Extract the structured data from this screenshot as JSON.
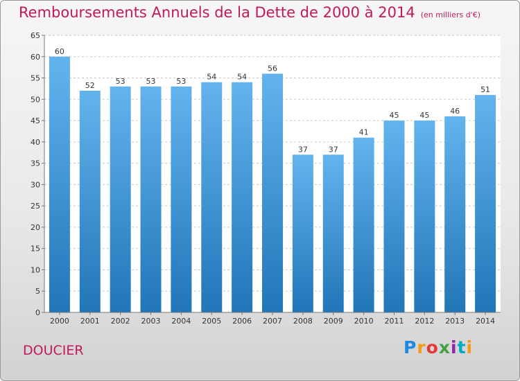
{
  "header": {
    "title": "Remboursements Annuels de la Dette de 2000 à 2014",
    "unit": "(en milliers d'€)"
  },
  "footer": {
    "commune": "DOUCIER"
  },
  "logo": {
    "text": "Proxiti",
    "colors": [
      "#1e88e5",
      "#f39c12",
      "#e53935",
      "#43a047",
      "#8e24aa",
      "#00acc1",
      "#f39c12"
    ]
  },
  "colors": {
    "title": "#c2185b",
    "bar_top": "#63b3ee",
    "bar_bottom": "#2176b8",
    "plot_bg": "#ffffff",
    "grid": "#c8c8c8"
  },
  "chart_data": {
    "type": "bar",
    "title": "Remboursements Annuels de la Dette de 2000 à 2014",
    "subtitle": "(en milliers d'€)",
    "xlabel": "",
    "ylabel": "",
    "categories": [
      "2000",
      "2001",
      "2002",
      "2003",
      "2004",
      "2005",
      "2006",
      "2007",
      "2008",
      "2009",
      "2010",
      "2011",
      "2012",
      "2013",
      "2014"
    ],
    "values": [
      60,
      52,
      53,
      53,
      53,
      54,
      54,
      56,
      37,
      37,
      41,
      45,
      45,
      46,
      51
    ],
    "ylim": [
      0,
      65
    ],
    "yticks": [
      0,
      5,
      10,
      15,
      20,
      25,
      30,
      35,
      40,
      45,
      50,
      55,
      60,
      65
    ],
    "grid": true,
    "data_labels": true
  }
}
